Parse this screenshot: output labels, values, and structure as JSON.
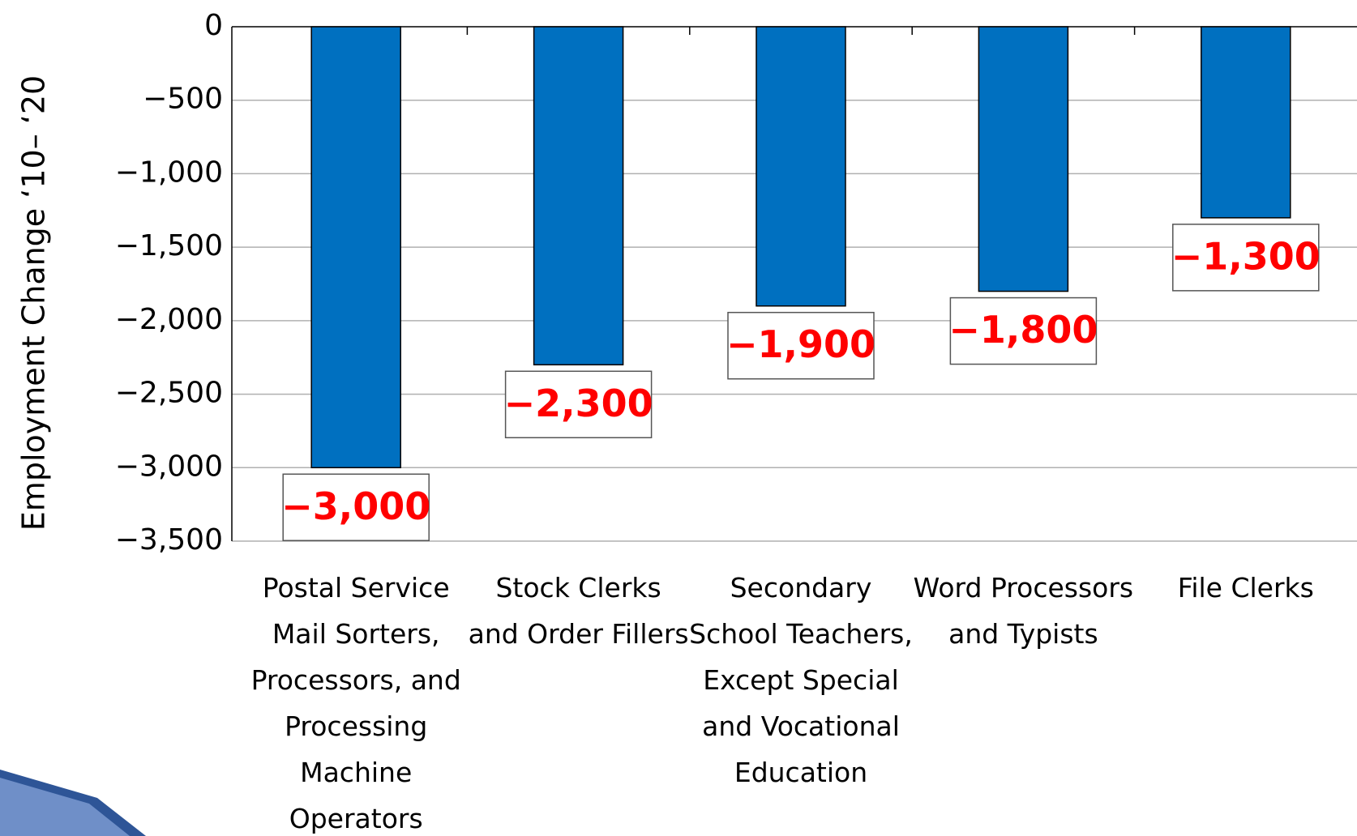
{
  "chart_data": {
    "type": "bar",
    "y_label": "Employment Change ‘10– ‘20",
    "categories": [
      "Postal Service Mail Sorters, Processors, and Processing Machine Operators",
      "Stock Clerks and Order Fillers",
      "Secondary School Teachers, Except Special and Vocational Education",
      "Word Processors and Typists",
      "File Clerks"
    ],
    "values": [
      -3000,
      -2300,
      -1900,
      -1800,
      -1300
    ],
    "value_labels": [
      "−3,000",
      "−2,300",
      "−1,900",
      "−1,800",
      "−1,300"
    ],
    "color": "#0070c0",
    "ylim": [
      -3500,
      0
    ],
    "yticks": [
      0,
      {
        "value": -500,
        "label": "−500"
      },
      {
        "value": -1000,
        "label": "−1,000"
      },
      {
        "value": -1500,
        "label": "−1,500"
      },
      {
        "value": -2000,
        "label": "−2,000"
      },
      {
        "value": -2500,
        "label": "−2,500"
      },
      {
        "value": -3000,
        "label": "−3,000"
      },
      {
        "value": -3500,
        "label": "−3,500"
      }
    ],
    "grid": true
  }
}
